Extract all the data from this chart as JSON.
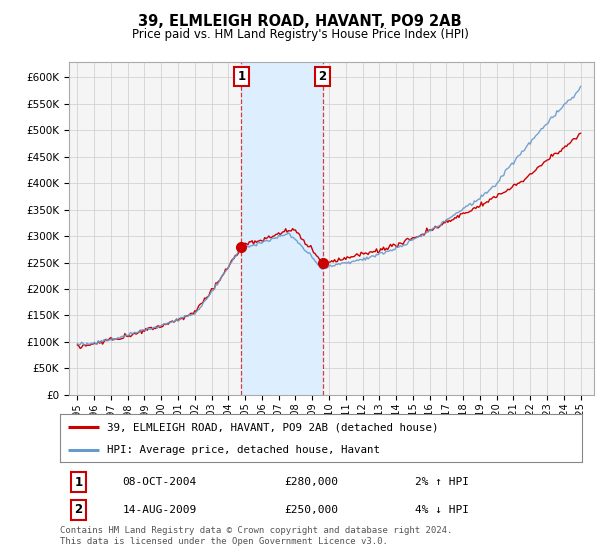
{
  "title": "39, ELMLEIGH ROAD, HAVANT, PO9 2AB",
  "subtitle": "Price paid vs. HM Land Registry's House Price Index (HPI)",
  "hpi_color": "#6699cc",
  "price_color": "#cc0000",
  "plot_bg": "#f5f5f5",
  "fig_bg": "#ffffff",
  "ylim": [
    0,
    630000
  ],
  "yticks": [
    0,
    50000,
    100000,
    150000,
    200000,
    250000,
    300000,
    350000,
    400000,
    450000,
    500000,
    550000,
    600000
  ],
  "transaction1": {
    "date": "08-OCT-2004",
    "price": 280000,
    "pct": "2%",
    "dir": "↑",
    "label": "1",
    "year": 2004.77
  },
  "transaction2": {
    "date": "14-AUG-2009",
    "price": 250000,
    "pct": "4%",
    "dir": "↓",
    "label": "2",
    "year": 2009.62
  },
  "legend_line1": "39, ELMLEIGH ROAD, HAVANT, PO9 2AB (detached house)",
  "legend_line2": "HPI: Average price, detached house, Havant",
  "footer": "Contains HM Land Registry data © Crown copyright and database right 2024.\nThis data is licensed under the Open Government Licence v3.0.",
  "shade_color": "#ddeeff",
  "xlim_left": 1994.5,
  "xlim_right": 2025.8
}
